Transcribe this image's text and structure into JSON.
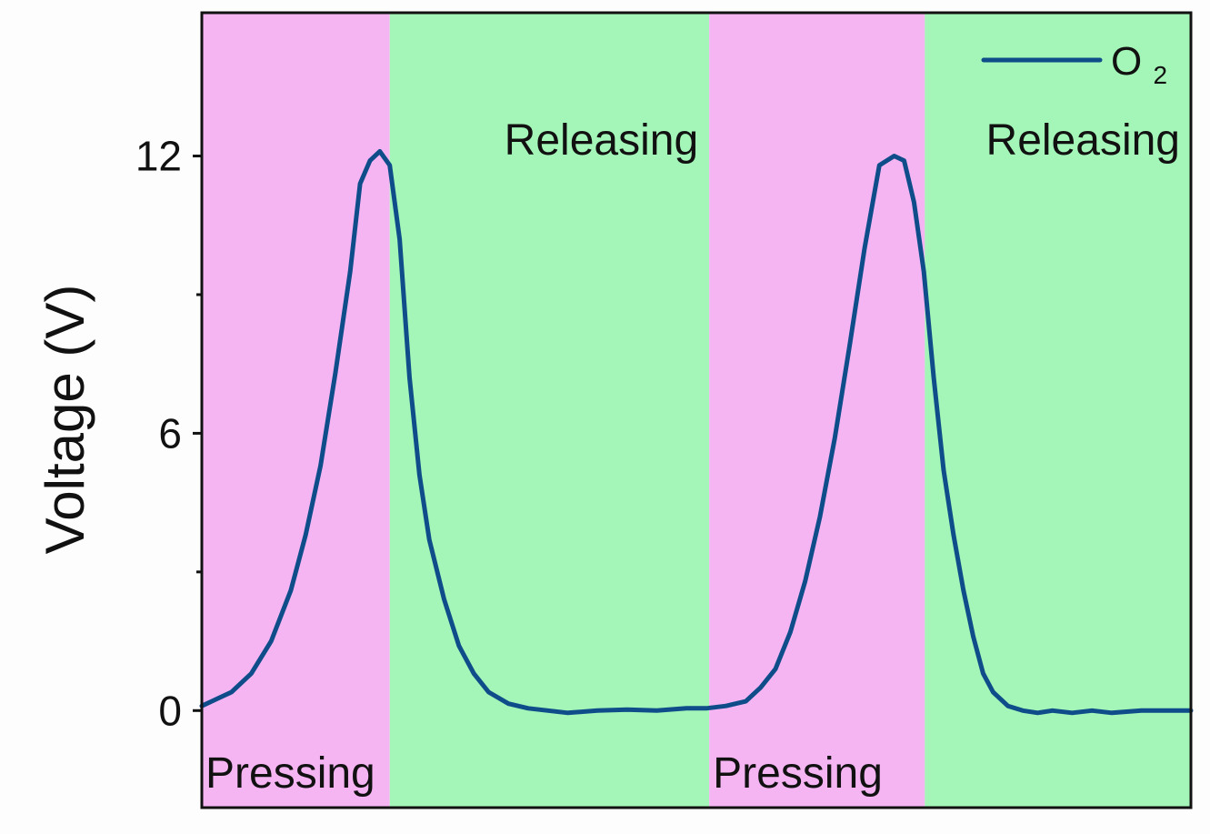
{
  "chart_data": {
    "type": "line",
    "title": "",
    "xlabel": "",
    "ylabel": "Voltage (V)",
    "ylim": [
      -2.1,
      15.1
    ],
    "xlim": [
      0,
      100
    ],
    "yticks": [
      0,
      6,
      12
    ],
    "ytick_labels": [
      "0",
      "6",
      "12"
    ],
    "x_ticks_shown": false,
    "grid": false,
    "legend": {
      "position": "top-right",
      "entries": [
        "O"
      ],
      "entry_subscript": "2"
    },
    "colors": {
      "pressing": "#f5b5f3",
      "releasing": "#a3f5b8",
      "line": "#0f4d8a",
      "frame": "#111111"
    },
    "regions": [
      {
        "label": "Pressing",
        "phase": "pressing",
        "x_start": 0,
        "x_end": 19,
        "label_row": "bottom"
      },
      {
        "label": "Releasing",
        "phase": "releasing",
        "x_start": 19,
        "x_end": 51.3,
        "label_row": "top"
      },
      {
        "label": "Pressing",
        "phase": "pressing",
        "x_start": 51.3,
        "x_end": 73.1,
        "label_row": "bottom"
      },
      {
        "label": "Releasing",
        "phase": "releasing",
        "x_start": 73.1,
        "x_end": 100,
        "label_row": "top"
      }
    ],
    "series": [
      {
        "name": "O",
        "name_subscript": "2",
        "x": [
          0,
          1,
          2,
          3,
          5,
          7,
          9,
          10.5,
          12,
          13.5,
          15,
          16,
          17,
          18,
          19,
          20,
          21,
          22,
          23,
          24.5,
          26,
          27.5,
          29,
          31,
          33,
          35,
          37,
          40,
          43,
          46,
          49,
          51,
          53,
          55,
          56.5,
          58,
          59.5,
          61,
          62.5,
          64,
          65.5,
          67,
          68.5,
          70,
          71,
          72,
          73,
          74,
          75,
          76,
          77,
          78,
          79,
          80,
          81.5,
          83,
          84.5,
          86,
          88,
          90,
          92,
          95,
          98,
          100
        ],
        "y": [
          0.1,
          0.2,
          0.3,
          0.4,
          0.8,
          1.5,
          2.6,
          3.8,
          5.3,
          7.3,
          9.5,
          11.4,
          11.9,
          12.1,
          11.8,
          10.2,
          7.2,
          5.1,
          3.7,
          2.4,
          1.4,
          0.8,
          0.4,
          0.15,
          0.05,
          0,
          -0.05,
          0,
          0.02,
          0,
          0.05,
          0.05,
          0.1,
          0.2,
          0.5,
          0.9,
          1.7,
          2.8,
          4.2,
          5.9,
          7.9,
          10.0,
          11.8,
          12.0,
          11.9,
          11.0,
          9.5,
          7.2,
          5.2,
          3.8,
          2.6,
          1.6,
          0.8,
          0.4,
          0.1,
          0,
          -0.05,
          0,
          -0.05,
          0,
          -0.05,
          0,
          0,
          0
        ]
      }
    ]
  }
}
